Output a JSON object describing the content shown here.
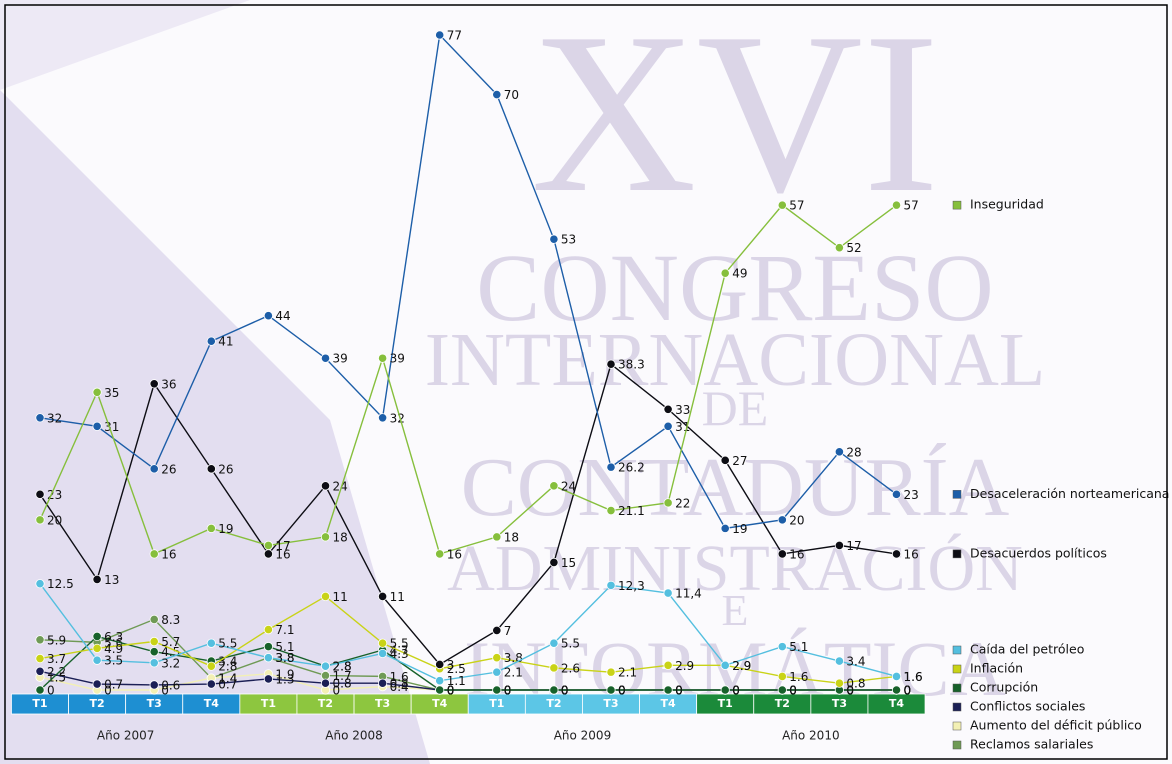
{
  "chart_data": {
    "type": "line",
    "categories": [
      "T1",
      "T2",
      "T3",
      "T4",
      "T1",
      "T2",
      "T3",
      "T4",
      "T1",
      "T2",
      "T3",
      "T4",
      "T1",
      "T2",
      "T3",
      "T4"
    ],
    "year_labels": [
      "Año 2007",
      "Año 2008",
      "Año 2009",
      "Año 2010"
    ],
    "year_colors": [
      "#1e8fd2",
      "#8dc63f",
      "#5cc6e6",
      "#1b8a3a"
    ],
    "series": [
      {
        "name": "Reclamos salariales",
        "color": "#6f9a55",
        "values": [
          5.9,
          5.6,
          8.3,
          1.4,
          3.8,
          1.7,
          1.6,
          0,
          0,
          0,
          0,
          0,
          0,
          0,
          0,
          0
        ]
      },
      {
        "name": "Aumento del déficit público",
        "color": "#f3f0b4",
        "values": [
          1.5,
          0,
          0,
          1.4,
          1.9,
          0,
          0.4,
          0,
          0,
          0,
          0,
          0,
          0,
          0,
          0,
          0
        ]
      },
      {
        "name": "Conflictos sociales",
        "color": "#1b1f55",
        "values": [
          2.2,
          0.7,
          0.6,
          0.7,
          1.3,
          0.8,
          0.8,
          0,
          0,
          0,
          0,
          0,
          0,
          0,
          0,
          0
        ]
      },
      {
        "name": "Corrupción",
        "color": "#17612a",
        "values": [
          0,
          6.3,
          4.5,
          3.4,
          5.1,
          2.8,
          4.7,
          0,
          0,
          0,
          0,
          0,
          0,
          0,
          0,
          0
        ]
      },
      {
        "name": "Inflación",
        "color": "#c9d317",
        "values": [
          3.7,
          4.9,
          5.7,
          2.8,
          7.1,
          11,
          5.5,
          2.5,
          3.8,
          2.6,
          2.1,
          2.9,
          2.9,
          1.6,
          0.8,
          1.6
        ]
      },
      {
        "name": "Caída del petróleo",
        "color": "#54bfdf",
        "values": [
          12.5,
          3.5,
          3.2,
          5.5,
          3.8,
          2.8,
          4.3,
          1.1,
          2.1,
          5.5,
          12.3,
          11.4,
          2.9,
          5.1,
          3.4,
          1.6
        ],
        "value_labels": [
          "12.5",
          "3.5",
          "3.2",
          "5.5",
          "3.8",
          "2.8",
          "4.3",
          "1.1",
          "2.1",
          "5.5",
          "12,3",
          "11,4",
          "2.9",
          "5.1",
          "3.4",
          "1.6"
        ]
      },
      {
        "name": "Desacuerdos políticos",
        "color": "#0d0d14",
        "values": [
          23,
          13,
          36,
          26,
          16,
          24,
          11,
          3,
          7,
          15,
          38.3,
          33,
          27,
          16,
          17,
          16
        ]
      },
      {
        "name": "Desaceleración norteamericana",
        "color": "#1d5ea8",
        "values": [
          32,
          31,
          26,
          41,
          44,
          39,
          32,
          77,
          70,
          53,
          26.2,
          31,
          19,
          20,
          28,
          23
        ]
      },
      {
        "name": "Inseguridad",
        "color": "#86bf3c",
        "values": [
          20,
          35,
          16,
          19,
          17,
          18,
          39,
          16,
          18,
          24,
          21.1,
          22,
          49,
          57,
          52,
          57
        ]
      }
    ]
  },
  "watermark": [
    "XVI",
    "CONGRESO",
    "INTERNACIONAL",
    "DE",
    "CONTADURÍA",
    "ADMINISTRACIÓN",
    "E",
    "INFORMÁTICA"
  ]
}
